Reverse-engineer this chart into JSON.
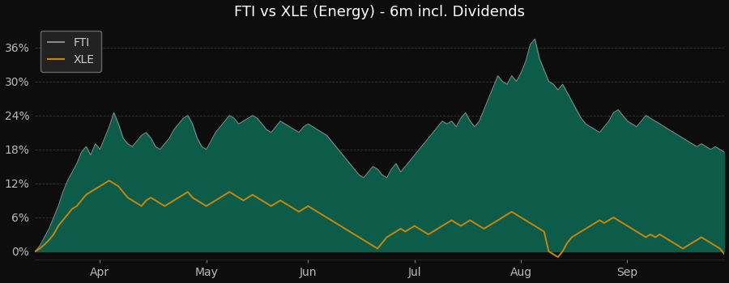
{
  "title": "FTI vs XLE (Energy) - 6m incl. Dividends",
  "background_color": "#0d0d0d",
  "plot_bg_color": "#0d0d0d",
  "grid_color": "#3a3a3a",
  "fti_fill_color": "#0d5c4a",
  "fti_line_color": "#888888",
  "xle_color": "#c8860a",
  "title_color": "#ffffff",
  "tick_color": "#bbbbbb",
  "legend_bg": "#222222",
  "legend_edge_color": "#666666",
  "legend_text_color": "#cccccc",
  "x_labels": [
    "Apr",
    "May",
    "Jun",
    "Jul",
    "Aug",
    "Sep"
  ],
  "y_ticks": [
    0,
    6,
    12,
    18,
    24,
    30,
    36
  ],
  "ylim": [
    -1.5,
    40
  ],
  "fti_data": [
    0.0,
    1.0,
    2.5,
    4.0,
    6.0,
    8.0,
    10.5,
    12.5,
    14.0,
    15.5,
    17.5,
    18.5,
    17.0,
    19.0,
    18.0,
    20.0,
    22.0,
    24.5,
    22.5,
    20.0,
    19.0,
    18.5,
    19.5,
    20.5,
    21.0,
    20.0,
    18.5,
    18.0,
    19.0,
    20.0,
    21.5,
    22.5,
    23.5,
    24.0,
    22.5,
    20.0,
    18.5,
    18.0,
    19.5,
    21.0,
    22.0,
    23.0,
    24.0,
    23.5,
    22.5,
    23.0,
    23.5,
    24.0,
    23.5,
    22.5,
    21.5,
    21.0,
    22.0,
    23.0,
    22.5,
    22.0,
    21.5,
    21.0,
    22.0,
    22.5,
    22.0,
    21.5,
    21.0,
    20.5,
    19.5,
    18.5,
    17.5,
    16.5,
    15.5,
    14.5,
    13.5,
    13.0,
    14.0,
    15.0,
    14.5,
    13.5,
    13.0,
    14.5,
    15.5,
    14.0,
    15.0,
    16.0,
    17.0,
    18.0,
    19.0,
    20.0,
    21.0,
    22.0,
    23.0,
    22.5,
    23.0,
    22.0,
    23.5,
    24.5,
    23.0,
    22.0,
    23.0,
    25.0,
    27.0,
    29.0,
    31.0,
    30.0,
    29.5,
    31.0,
    30.0,
    31.5,
    33.5,
    36.5,
    37.5,
    34.0,
    32.0,
    30.0,
    29.5,
    28.5,
    29.5,
    28.0,
    26.5,
    25.0,
    23.5,
    22.5,
    22.0,
    21.5,
    21.0,
    22.0,
    23.0,
    24.5,
    25.0,
    24.0,
    23.0,
    22.5,
    22.0,
    23.0,
    24.0,
    23.5,
    23.0,
    22.5,
    22.0,
    21.5,
    21.0,
    20.5,
    20.0,
    19.5,
    19.0,
    18.5,
    19.0,
    18.5,
    18.0,
    18.5,
    18.0,
    17.5
  ],
  "xle_data": [
    0.0,
    0.5,
    1.2,
    2.0,
    3.0,
    4.5,
    5.5,
    6.5,
    7.5,
    8.0,
    9.0,
    10.0,
    10.5,
    11.0,
    11.5,
    12.0,
    12.5,
    12.0,
    11.5,
    10.5,
    9.5,
    9.0,
    8.5,
    8.0,
    9.0,
    9.5,
    9.0,
    8.5,
    8.0,
    8.5,
    9.0,
    9.5,
    10.0,
    10.5,
    9.5,
    9.0,
    8.5,
    8.0,
    8.5,
    9.0,
    9.5,
    10.0,
    10.5,
    10.0,
    9.5,
    9.0,
    9.5,
    10.0,
    9.5,
    9.0,
    8.5,
    8.0,
    8.5,
    9.0,
    8.5,
    8.0,
    7.5,
    7.0,
    7.5,
    8.0,
    7.5,
    7.0,
    6.5,
    6.0,
    5.5,
    5.0,
    4.5,
    4.0,
    3.5,
    3.0,
    2.5,
    2.0,
    1.5,
    1.0,
    0.5,
    1.5,
    2.5,
    3.0,
    3.5,
    4.0,
    3.5,
    4.0,
    4.5,
    4.0,
    3.5,
    3.0,
    3.5,
    4.0,
    4.5,
    5.0,
    5.5,
    5.0,
    4.5,
    5.0,
    5.5,
    5.0,
    4.5,
    4.0,
    4.5,
    5.0,
    5.5,
    6.0,
    6.5,
    7.0,
    6.5,
    6.0,
    5.5,
    5.0,
    4.5,
    4.0,
    3.5,
    0.0,
    -0.5,
    -1.0,
    0.0,
    1.5,
    2.5,
    3.0,
    3.5,
    4.0,
    4.5,
    5.0,
    5.5,
    5.0,
    5.5,
    6.0,
    5.5,
    5.0,
    4.5,
    4.0,
    3.5,
    3.0,
    2.5,
    3.0,
    2.5,
    3.0,
    2.5,
    2.0,
    1.5,
    1.0,
    0.5,
    1.0,
    1.5,
    2.0,
    2.5,
    2.0,
    1.5,
    1.0,
    0.5,
    -0.5
  ]
}
